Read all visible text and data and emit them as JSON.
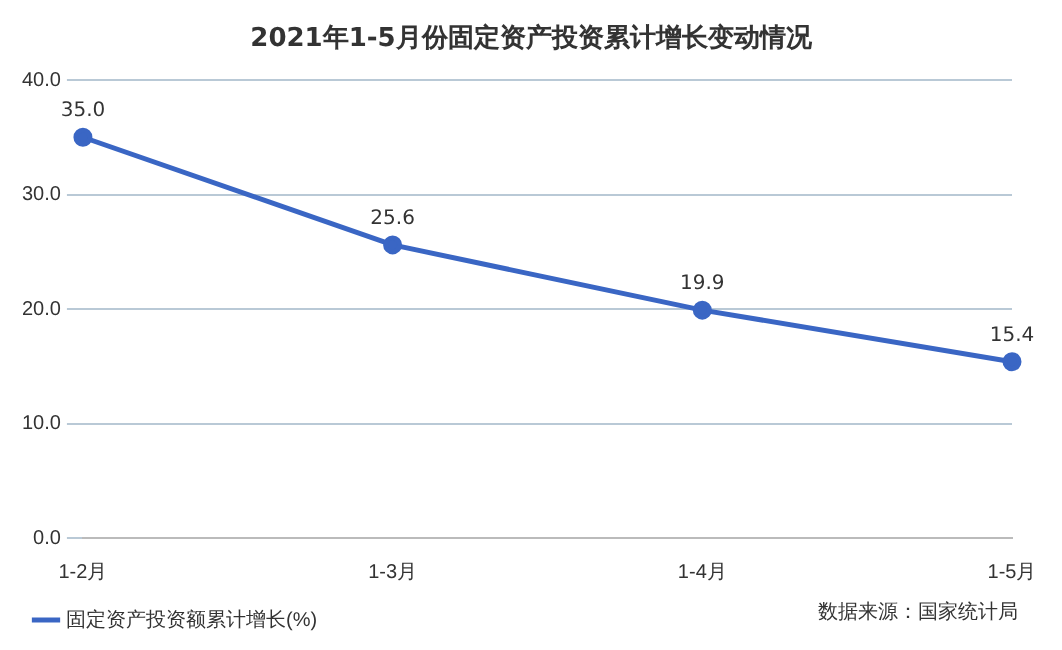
{
  "chart_data": {
    "type": "line",
    "title": "2021年1-5月份固定资产投资累计增长变动情况",
    "categories": [
      "1-2月",
      "1-3月",
      "1-4月",
      "1-5月"
    ],
    "series": [
      {
        "name": "固定资产投资额累计增长(%)",
        "color": "#3a66c4",
        "values": [
          35.0,
          25.6,
          19.9,
          15.4
        ],
        "value_labels": [
          "35.0",
          "25.6",
          "19.9",
          "15.4"
        ]
      }
    ],
    "ylim": [
      0,
      40
    ],
    "yticks": [
      {
        "value": 0,
        "label": "0.0"
      },
      {
        "value": 10,
        "label": "10.0"
      },
      {
        "value": 20,
        "label": "20.0"
      },
      {
        "value": 30,
        "label": "30.0"
      },
      {
        "value": 40,
        "label": "40.0"
      }
    ],
    "grid": "y",
    "legend": "bottom left",
    "marker": "circle",
    "line_style": "solid",
    "annotations": [
      "数据来源：国家统计局"
    ]
  }
}
